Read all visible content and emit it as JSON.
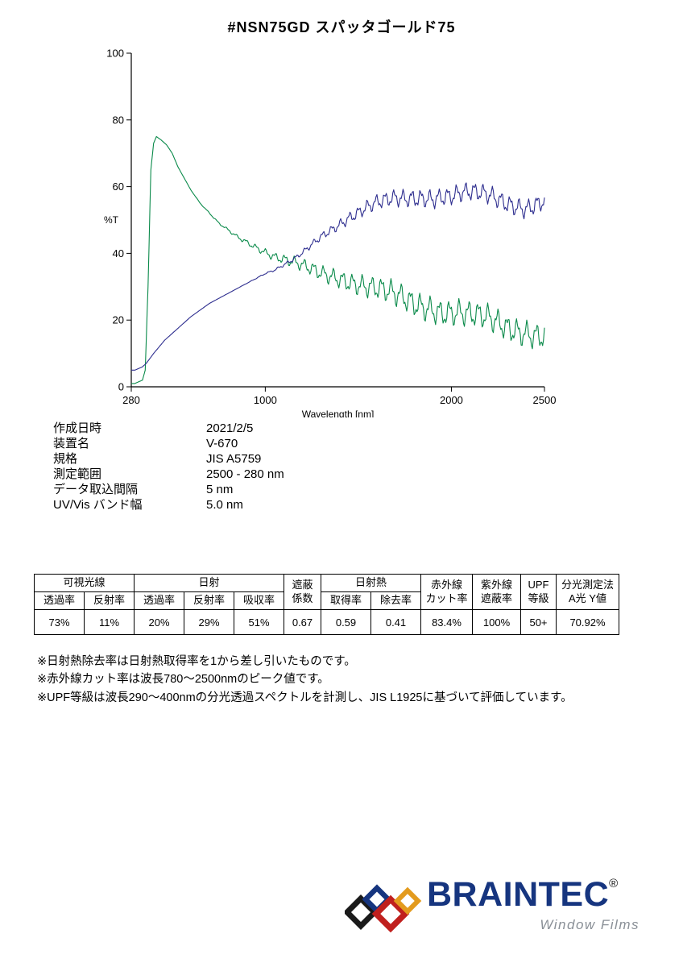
{
  "title": "#NSN75GD  スパッタゴールド75",
  "chart_data": {
    "type": "line",
    "title": "",
    "xlabel": "Wavelength [nm]",
    "ylabel": "%T",
    "xlim": [
      280,
      2500
    ],
    "ylim": [
      0,
      100
    ],
    "x_ticks": [
      280,
      1000,
      2000,
      2500
    ],
    "y_ticks": [
      0,
      20,
      40,
      60,
      80,
      100
    ],
    "grid": false,
    "legend": "none",
    "series": [
      {
        "name": "transmittance",
        "color": "#0a8a4a",
        "x": [
          280,
          300,
          320,
          340,
          355,
          370,
          385,
          400,
          415,
          440,
          470,
          500,
          530,
          560,
          600,
          650,
          700,
          750,
          800,
          850,
          900,
          950,
          1000,
          1050,
          1100,
          1150,
          1200,
          1250,
          1300,
          1350,
          1400,
          1450,
          1500,
          1550,
          1600,
          1650,
          1700,
          1750,
          1800,
          1850,
          1900,
          1950,
          2000,
          2050,
          2100,
          2150,
          2200,
          2250,
          2300,
          2350,
          2400,
          2450,
          2500
        ],
        "y": [
          1,
          1,
          1.5,
          2,
          5,
          30,
          65,
          73,
          75,
          74,
          72.5,
          70,
          66,
          63,
          59,
          55,
          52,
          49,
          47,
          45,
          43.5,
          42,
          40.5,
          39,
          38,
          37,
          36,
          35,
          34,
          33.5,
          33,
          32,
          31,
          30,
          29,
          28,
          27,
          26,
          25,
          24.5,
          24,
          23,
          22.5,
          22,
          21,
          20.5,
          20,
          19,
          18,
          17.5,
          17,
          16,
          15.5
        ],
        "fringe": {
          "start": 520,
          "full": 1900,
          "period": 52,
          "max_amp": 4.5
        }
      },
      {
        "name": "reflectance",
        "color": "#2e2e8f",
        "x": [
          280,
          300,
          320,
          340,
          360,
          380,
          400,
          430,
          460,
          500,
          550,
          600,
          650,
          700,
          750,
          800,
          850,
          900,
          950,
          1000,
          1050,
          1100,
          1150,
          1200,
          1250,
          1300,
          1350,
          1400,
          1450,
          1500,
          1550,
          1600,
          1650,
          1700,
          1750,
          1800,
          1850,
          1900,
          1950,
          2000,
          2050,
          2100,
          2150,
          2200,
          2250,
          2300,
          2350,
          2400,
          2450,
          2500
        ],
        "y": [
          5,
          5,
          5.5,
          6,
          7,
          8.5,
          10,
          12,
          14,
          16,
          18.5,
          21,
          23,
          25,
          26.5,
          28,
          29.5,
          31,
          32.5,
          34,
          35,
          36.5,
          38,
          40,
          42.5,
          45,
          47,
          49,
          51,
          52.5,
          54,
          55,
          55.5,
          56,
          56,
          56.5,
          57,
          57,
          57.5,
          57.5,
          58,
          58,
          57.5,
          57,
          56,
          55,
          54.5,
          54,
          55,
          56
        ],
        "fringe": {
          "start": 820,
          "full": 1900,
          "period": 48,
          "max_amp": 3.2
        }
      }
    ]
  },
  "metadata": {
    "rows": [
      {
        "label": "作成日時",
        "value": "2021/2/5"
      },
      {
        "label": "装置名",
        "value": "V-670"
      },
      {
        "label": "規格",
        "value": "JIS A5759"
      },
      {
        "label": "測定範囲",
        "value": "2500 - 280 nm"
      },
      {
        "label": "データ取込間隔",
        "value": "5 nm"
      },
      {
        "label": "UV/Vis バンド幅",
        "value": "5.0 nm"
      }
    ]
  },
  "results_table": {
    "groups": [
      "可視光線",
      "日射",
      "遮蔽\n係数",
      "日射熱",
      "赤外線\nカット率",
      "紫外線\n遮蔽率",
      "UPF\n等級",
      "分光測定法\nA光 Y値"
    ],
    "sub": [
      "透過率",
      "反射率",
      "透過率",
      "反射率",
      "吸収率",
      "取得率",
      "除去率"
    ],
    "values": [
      "73%",
      "11%",
      "20%",
      "29%",
      "51%",
      "0.67",
      "0.59",
      "0.41",
      "83.4%",
      "100%",
      "50+",
      "70.92%"
    ]
  },
  "notes": [
    "※日射熱除去率は日射熱取得率を1から差し引いたものです。",
    "※赤外線カット率は波長780〜2500nmのピーク値です。",
    "※UPF等級は波長290〜400nmの分光透過スペクトルを計測し、JIS L1925に基づいて評価しています。"
  ],
  "logo": {
    "brand": "BRAINTEC",
    "registered": "®",
    "tagline": "Window Films",
    "brand_color": "#16357f",
    "tagline_color": "#8a9097",
    "diamond_colors": [
      "#1a1a1a",
      "#16357f",
      "#c0201e",
      "#e39b1e"
    ]
  }
}
